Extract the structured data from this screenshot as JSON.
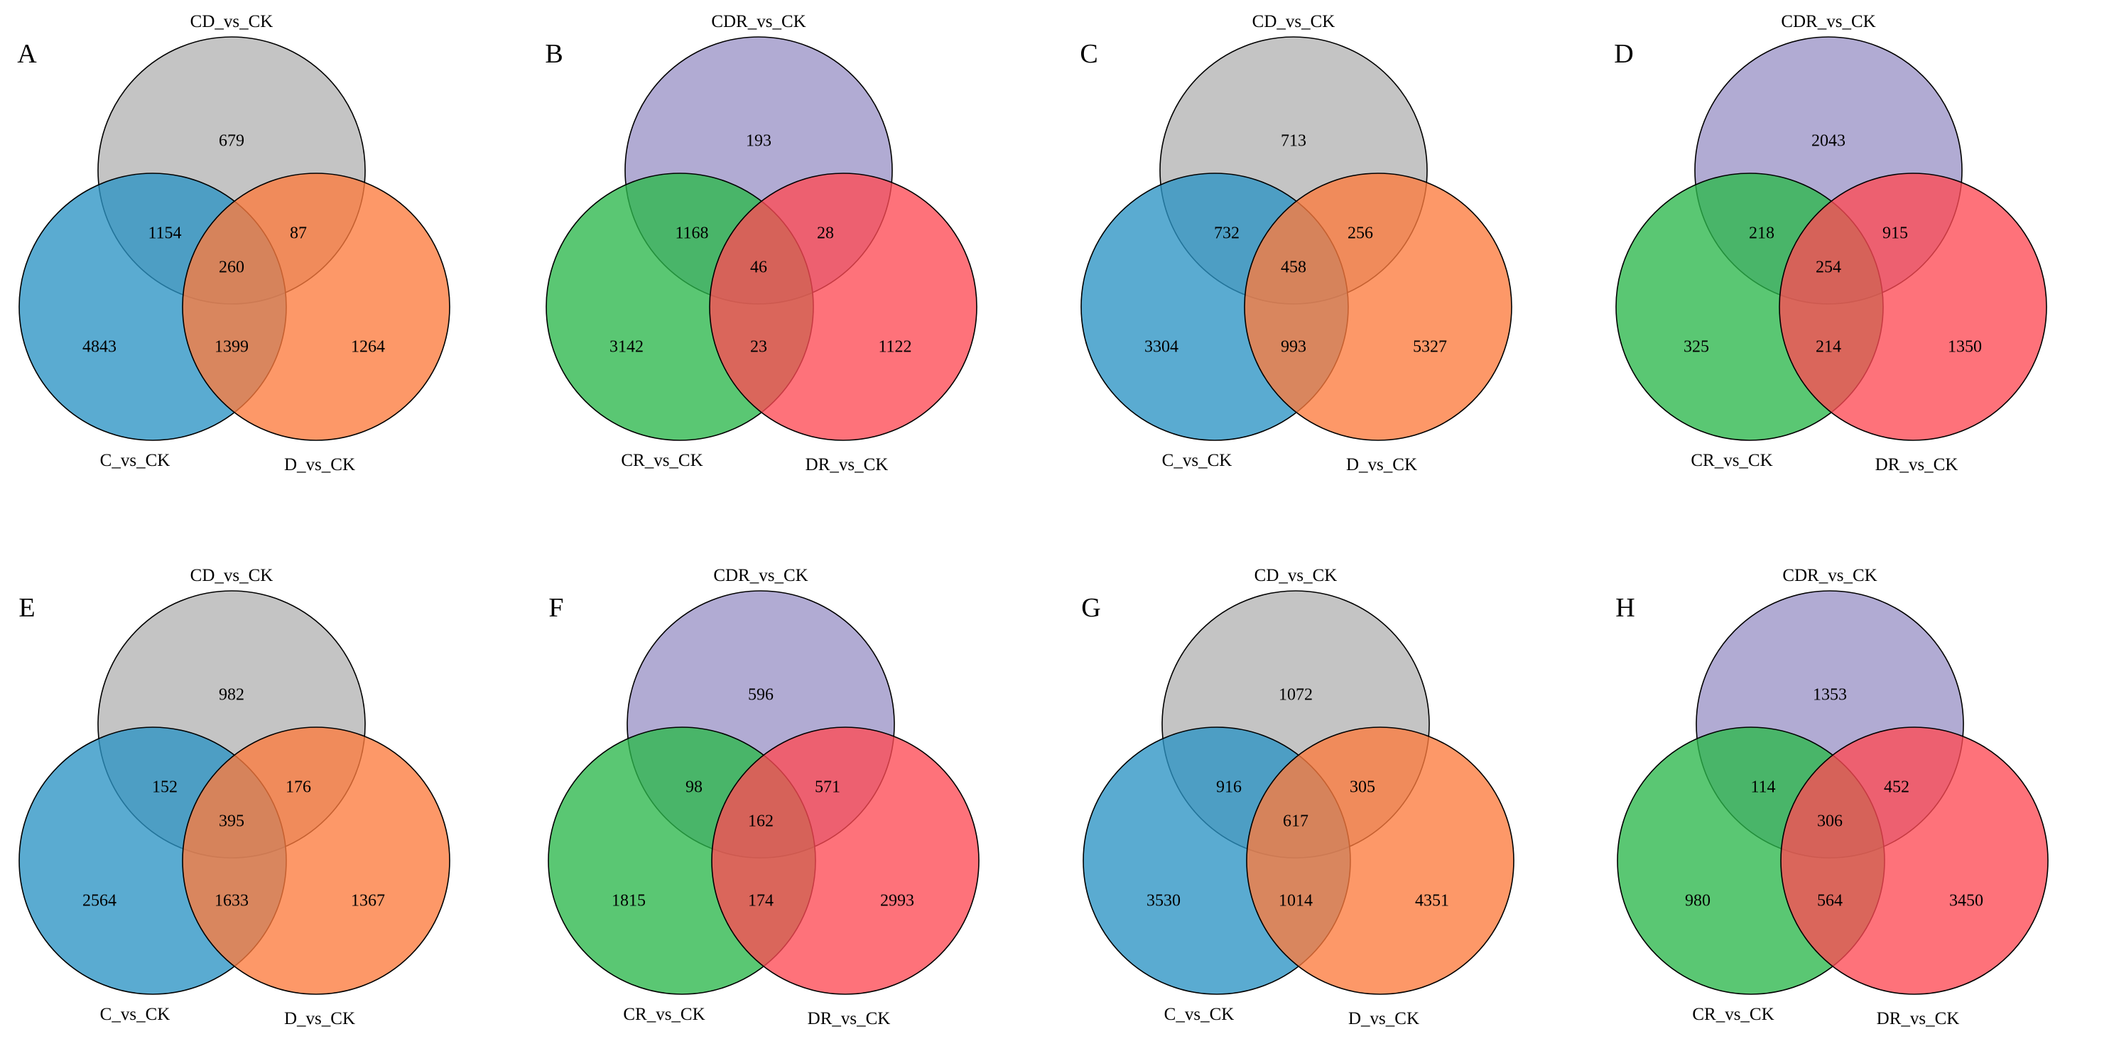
{
  "palette": {
    "grey": "#b3b3b3",
    "purple": "#9b93c6",
    "blue": "#2b93c4",
    "green": "#2cb74c",
    "orange": "#fd7b3d",
    "red": "#fe4a55"
  },
  "panels": [
    {
      "label": "A",
      "sets": {
        "top": "CD_vs_CK",
        "left": "C_vs_CK",
        "right": "D_vs_CK"
      },
      "colors": [
        "grey",
        "blue",
        "orange"
      ],
      "counts": {
        "top_only": "679",
        "left_only": "4843",
        "right_only": "1264",
        "top_left": "1154",
        "top_right": "87",
        "left_right": "1399",
        "all": "260"
      }
    },
    {
      "label": "B",
      "sets": {
        "top": "CDR_vs_CK",
        "left": "CR_vs_CK",
        "right": "DR_vs_CK"
      },
      "colors": [
        "purple",
        "green",
        "red"
      ],
      "counts": {
        "top_only": "193",
        "left_only": "3142",
        "right_only": "1122",
        "top_left": "1168",
        "top_right": "28",
        "left_right": "23",
        "all": "46"
      }
    },
    {
      "label": "C",
      "sets": {
        "top": "CD_vs_CK",
        "left": "C_vs_CK",
        "right": "D_vs_CK"
      },
      "colors": [
        "grey",
        "blue",
        "orange"
      ],
      "counts": {
        "top_only": "713",
        "left_only": "3304",
        "right_only": "5327",
        "top_left": "732",
        "top_right": "256",
        "left_right": "993",
        "all": "458"
      }
    },
    {
      "label": "D",
      "sets": {
        "top": "CDR_vs_CK",
        "left": "CR_vs_CK",
        "right": "DR_vs_CK"
      },
      "colors": [
        "purple",
        "green",
        "red"
      ],
      "counts": {
        "top_only": "2043",
        "left_only": "325",
        "right_only": "1350",
        "top_left": "218",
        "top_right": "915",
        "left_right": "214",
        "all": "254"
      }
    },
    {
      "label": "E",
      "sets": {
        "top": "CD_vs_CK",
        "left": "C_vs_CK",
        "right": "D_vs_CK"
      },
      "colors": [
        "grey",
        "blue",
        "orange"
      ],
      "counts": {
        "top_only": "982",
        "left_only": "2564",
        "right_only": "1367",
        "top_left": "152",
        "top_right": "176",
        "left_right": "1633",
        "all": "395"
      }
    },
    {
      "label": "F",
      "sets": {
        "top": "CDR_vs_CK",
        "left": "CR_vs_CK",
        "right": "DR_vs_CK"
      },
      "colors": [
        "purple",
        "green",
        "red"
      ],
      "counts": {
        "top_only": "596",
        "left_only": "1815",
        "right_only": "2993",
        "top_left": "98",
        "top_right": "571",
        "left_right": "174",
        "all": "162"
      }
    },
    {
      "label": "G",
      "sets": {
        "top": "CD_vs_CK",
        "left": "C_vs_CK",
        "right": "D_vs_CK"
      },
      "colors": [
        "grey",
        "blue",
        "orange"
      ],
      "counts": {
        "top_only": "1072",
        "left_only": "3530",
        "right_only": "4351",
        "top_left": "916",
        "top_right": "305",
        "left_right": "1014",
        "all": "617"
      }
    },
    {
      "label": "H",
      "sets": {
        "top": "CDR_vs_CK",
        "left": "CR_vs_CK",
        "right": "DR_vs_CK"
      },
      "colors": [
        "purple",
        "green",
        "red"
      ],
      "counts": {
        "top_only": "1353",
        "left_only": "980",
        "right_only": "3450",
        "top_left": "114",
        "top_right": "452",
        "left_right": "564",
        "all": "306"
      }
    }
  ]
}
